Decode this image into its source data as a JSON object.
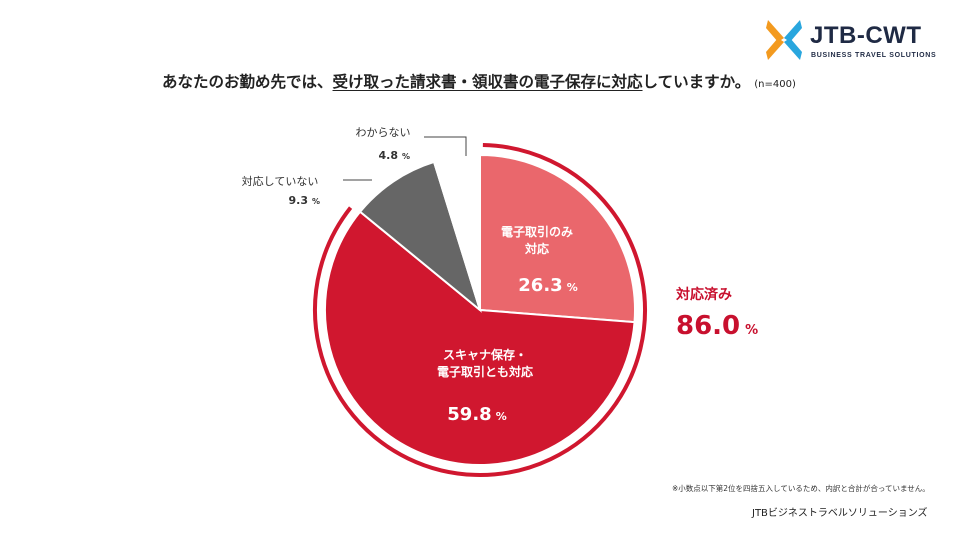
{
  "logo": {
    "brand": "JTB-CWT",
    "tagline": "BUSINESS TRAVEL SOLUTIONS",
    "colors": {
      "orange": "#f39a1f",
      "blue": "#29a6de",
      "navy": "#1f2a44"
    }
  },
  "title": {
    "prefix": "あなたのお勤め先では、",
    "underlined": "受け取った請求書・領収書の電子保存に対応",
    "suffix": "していますか。",
    "n": "(n=400)"
  },
  "chart_data": {
    "type": "pie",
    "title": "あなたのお勤め先では、受け取った請求書・領収書の電子保存に対応していますか。",
    "unit": "%",
    "start_angle_deg": 0,
    "direction": "clockwise",
    "slices": [
      {
        "label_lines": [
          "電子取引のみ",
          "対応"
        ],
        "value": 26.3,
        "value_text": "26.3",
        "color": "#ea676c",
        "label_inside": true
      },
      {
        "label_lines": [
          "スキャナ保存・",
          "電子取引とも対応"
        ],
        "value": 59.8,
        "value_text": "59.8",
        "color": "#d0172f",
        "label_inside": true
      },
      {
        "label_lines": [
          "対応していない"
        ],
        "value": 9.3,
        "value_text": "9.3",
        "color": "#666666",
        "label_inside": false
      },
      {
        "label_lines": [
          "わからない"
        ],
        "value": 4.8,
        "value_text": "4.8",
        "color": "#ffffff",
        "label_inside": false
      }
    ],
    "summary": {
      "label": "対応済み",
      "value": 86.0,
      "value_text": "86.0",
      "color": "#c8102e",
      "arc_color": "#d0172f"
    }
  },
  "footnote": "※小数点以下第2位を四捨五入しているため、内訳と合計が合っていません。",
  "company": "JTBビジネストラベルソリューションズ"
}
